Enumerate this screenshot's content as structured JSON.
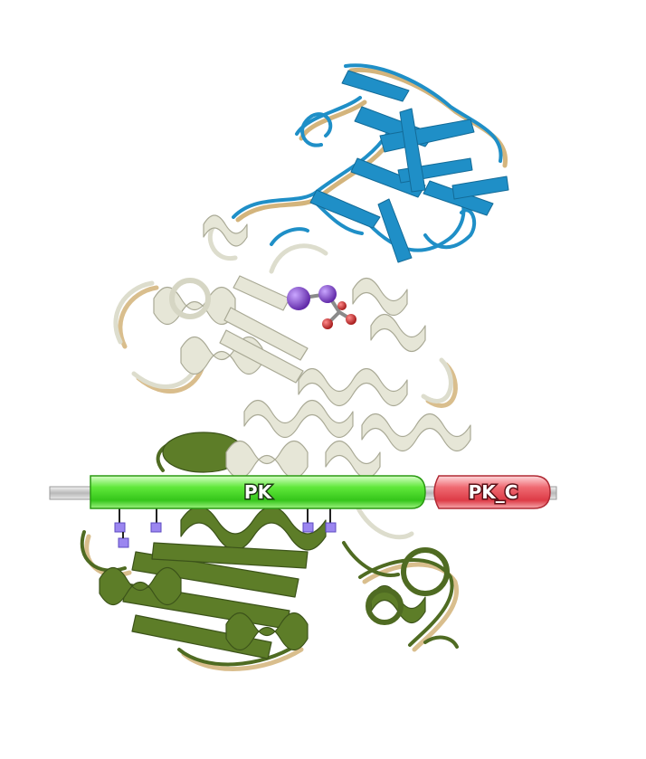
{
  "domains": [
    {
      "label": "PK",
      "color": "#3fd61e"
    },
    {
      "label": "PK_C",
      "color": "#e84a55"
    }
  ],
  "structure": {
    "top_domain_color": "#1f8fc7",
    "middle_domain_color": "#ddddcd",
    "bottom_domain_color": "#4f6b22",
    "ligand_colors": [
      "#7a3ec2",
      "#cc2b2b",
      "#b0b0b0"
    ],
    "site_marker_color": "#9b86f0"
  }
}
